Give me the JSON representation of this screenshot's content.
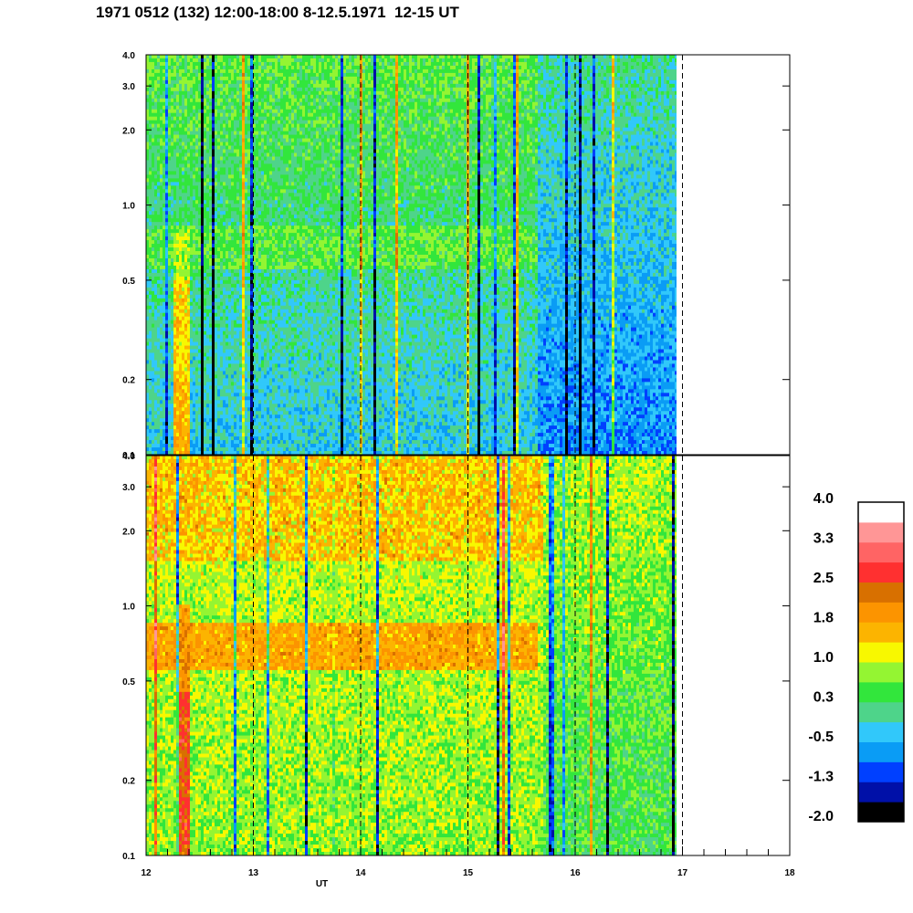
{
  "title": "1971 0512 (132) 12:00-18:00 8-12.5.1971  12-15 UT",
  "colors": {
    "background": "#ffffff",
    "axis": "#000000",
    "gridline": "#000000"
  },
  "chart_data": {
    "type": "heatmap",
    "xlabel": "UT",
    "x_ticks": [
      "12",
      "13",
      "14",
      "15",
      "16",
      "17",
      "18"
    ],
    "xlim": [
      12,
      18
    ],
    "data_end_ut": 17,
    "dashed_ut_lines": [
      13,
      14,
      15,
      16,
      17
    ],
    "y_scale": "log",
    "ylim": [
      0.1,
      4.0
    ],
    "y_ticks": [
      {
        "v": 0.1,
        "label": "0.1"
      },
      {
        "v": 0.2,
        "label": "0.2"
      },
      {
        "v": 0.5,
        "label": "0.5"
      },
      {
        "v": 1.0,
        "label": "1.0"
      },
      {
        "v": 2.0,
        "label": "2.0"
      },
      {
        "v": 3.0,
        "label": "3.0"
      },
      {
        "v": 4.0,
        "label": "4.0"
      }
    ],
    "panels": [
      {
        "name": "upper",
        "base_level": 0,
        "notes": "cyan/blue background, green band near 0.55-0.8, dark blue streaks, orange burst near 12.3 UT"
      },
      {
        "name": "lower",
        "base_level": 1.2,
        "notes": "yellow/green background, orange band near 0.55-0.85 ending ~15.7 UT, red burst near 12.35 UT"
      }
    ],
    "colorbar": {
      "labels": [
        "4.0",
        "3.3",
        "2.5",
        "1.8",
        "1.0",
        "0.3",
        "-0.5",
        "-1.3",
        "-2.0"
      ],
      "min": -2.0,
      "max": 4.0,
      "colors": [
        "#000000",
        "#0010a8",
        "#0040ff",
        "#0a9cf5",
        "#31c8fa",
        "#4ed48a",
        "#32e63c",
        "#94f532",
        "#f8f800",
        "#fcb400",
        "#fc9400",
        "#d87000",
        "#ff3030",
        "#ff6464",
        "#ff9696",
        "#ffffff"
      ]
    }
  }
}
